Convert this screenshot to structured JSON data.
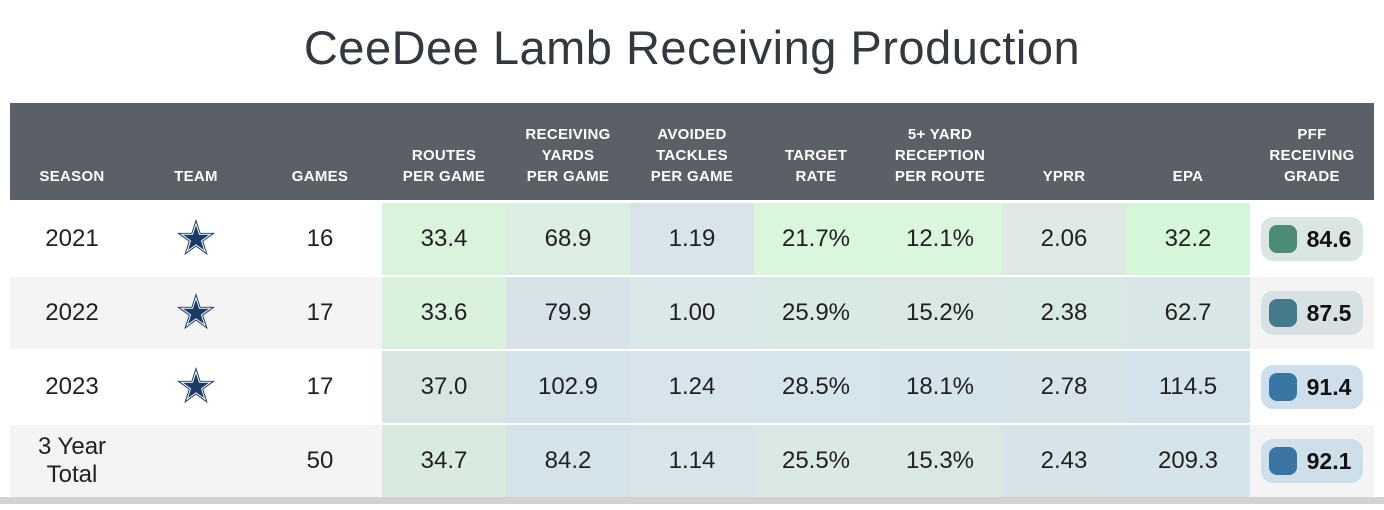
{
  "title": "CeeDee Lamb Receiving Production",
  "colors": {
    "header_bg": "#5b5f66",
    "header_text": "#ffffff",
    "zebra_row_bg": "#f4f4f4",
    "white_row_bg": "#ffffff",
    "body_text": "#212121",
    "title_text": "#32383d",
    "bottom_strip": "#d2d2d2",
    "team_navy": "#1b3a64"
  },
  "table": {
    "columns": [
      {
        "key": "season",
        "label": "SEASON"
      },
      {
        "key": "team",
        "label": "TEAM"
      },
      {
        "key": "games",
        "label": "GAMES"
      },
      {
        "key": "routes-per-game",
        "label": "ROUTES\nPER GAME"
      },
      {
        "key": "receiving-yards-per-game",
        "label": "RECEIVING\nYARDS\nPER GAME"
      },
      {
        "key": "avoided-tackles-per-game",
        "label": "AVOIDED\nTACKLES\nPER GAME"
      },
      {
        "key": "target-rate",
        "label": "TARGET\nRATE"
      },
      {
        "key": "five-plus-yard-reception-per-route",
        "label": "5+ YARD\nRECEPTION\nPER ROUTE"
      },
      {
        "key": "yprr",
        "label": "YPRR"
      },
      {
        "key": "epa",
        "label": "EPA"
      },
      {
        "key": "pff-receiving-grade",
        "label": "PFF\nRECEIVING\nGRADE"
      }
    ],
    "rows": [
      {
        "season": "2021",
        "team_logo": "dallas-cowboys-star-icon",
        "games": "16",
        "row_bg": "#ffffff",
        "stats": [
          {
            "value": "33.4",
            "bg": "#d9f3dc"
          },
          {
            "value": "68.9",
            "bg": "#dcede1"
          },
          {
            "value": "1.19",
            "bg": "#d9e3ea"
          },
          {
            "value": "21.7%",
            "bg": "#daf6dd"
          },
          {
            "value": "12.1%",
            "bg": "#daf6dd"
          },
          {
            "value": "2.06",
            "bg": "#dfe9e3"
          },
          {
            "value": "32.2",
            "bg": "#d6f6da"
          }
        ],
        "grade": {
          "value": "84.6",
          "square_color": "#4d8b76",
          "pill_bg": "#dce6e1"
        }
      },
      {
        "season": "2022",
        "team_logo": "dallas-cowboys-star-icon",
        "games": "17",
        "row_bg": "#f4f4f4",
        "stats": [
          {
            "value": "33.6",
            "bg": "#daf2dd"
          },
          {
            "value": "79.9",
            "bg": "#d7e3e8"
          },
          {
            "value": "1.00",
            "bg": "#dbe8e9"
          },
          {
            "value": "25.9%",
            "bg": "#d9e9e5"
          },
          {
            "value": "15.2%",
            "bg": "#d9e8e4"
          },
          {
            "value": "2.38",
            "bg": "#d8e8e4"
          },
          {
            "value": "62.7",
            "bg": "#d8e7e5"
          }
        ],
        "grade": {
          "value": "87.5",
          "square_color": "#46798b",
          "pill_bg": "#d7e1e4"
        }
      },
      {
        "season": "2023",
        "team_logo": "dallas-cowboys-star-icon",
        "games": "17",
        "row_bg": "#ffffff",
        "stats": [
          {
            "value": "37.0",
            "bg": "#d8e6e3"
          },
          {
            "value": "102.9",
            "bg": "#d3e2eb"
          },
          {
            "value": "1.24",
            "bg": "#d7e4eb"
          },
          {
            "value": "28.5%",
            "bg": "#d6e4eb"
          },
          {
            "value": "18.1%",
            "bg": "#d5e3eb"
          },
          {
            "value": "2.78",
            "bg": "#d6e4ea"
          },
          {
            "value": "114.5",
            "bg": "#d3e2eb"
          }
        ],
        "grade": {
          "value": "91.4",
          "square_color": "#3a76a4",
          "pill_bg": "#cedfeb"
        }
      },
      {
        "season": "3 Year Total",
        "team_logo": null,
        "games": "50",
        "row_bg": "#f4f4f4",
        "stats": [
          {
            "value": "34.7",
            "bg": "#d9eadf"
          },
          {
            "value": "84.2",
            "bg": "#d4e3ea"
          },
          {
            "value": "1.14",
            "bg": "#d7e4e9"
          },
          {
            "value": "25.5%",
            "bg": "#dbe9e6"
          },
          {
            "value": "15.3%",
            "bg": "#dae8e3"
          },
          {
            "value": "2.43",
            "bg": "#d6e4ea"
          },
          {
            "value": "209.3",
            "bg": "#d5e3eb"
          }
        ],
        "grade": {
          "value": "92.1",
          "square_color": "#3a74a2",
          "pill_bg": "#cfdfea"
        }
      }
    ]
  }
}
